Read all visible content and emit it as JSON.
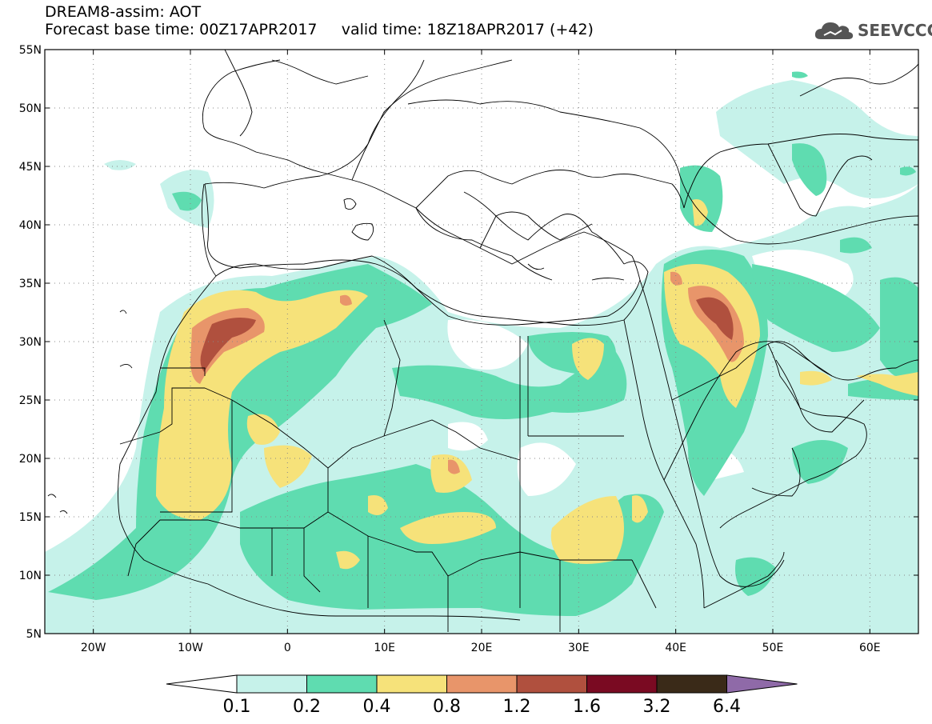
{
  "header": {
    "line1": "DREAM8-assim: AOT",
    "line2": "Forecast base time: 00Z17APR2017     valid time: 18Z18APR2017 (+42)"
  },
  "logo": {
    "text": "SEEVCCC",
    "icon": "cloud-logo-icon"
  },
  "map": {
    "lon_range": [
      -25,
      65
    ],
    "lat_range": [
      5,
      55
    ],
    "lat_labels": [
      "55N",
      "50N",
      "45N",
      "40N",
      "35N",
      "30N",
      "25N",
      "20N",
      "15N",
      "10N",
      "5N"
    ],
    "lon_labels": [
      "20W",
      "10W",
      "0",
      "10E",
      "20E",
      "30E",
      "40E",
      "50E",
      "60E"
    ]
  },
  "colorbar": {
    "levels": [
      "0.1",
      "0.2",
      "0.4",
      "0.8",
      "1.2",
      "1.6",
      "3.2",
      "6.4"
    ],
    "colors": [
      "#ffffff",
      "#c6f2ea",
      "#5fdcb0",
      "#f6e27a",
      "#e8956a",
      "#b0503e",
      "#7a0a22",
      "#3a2a18",
      "#8f6aa8"
    ]
  }
}
